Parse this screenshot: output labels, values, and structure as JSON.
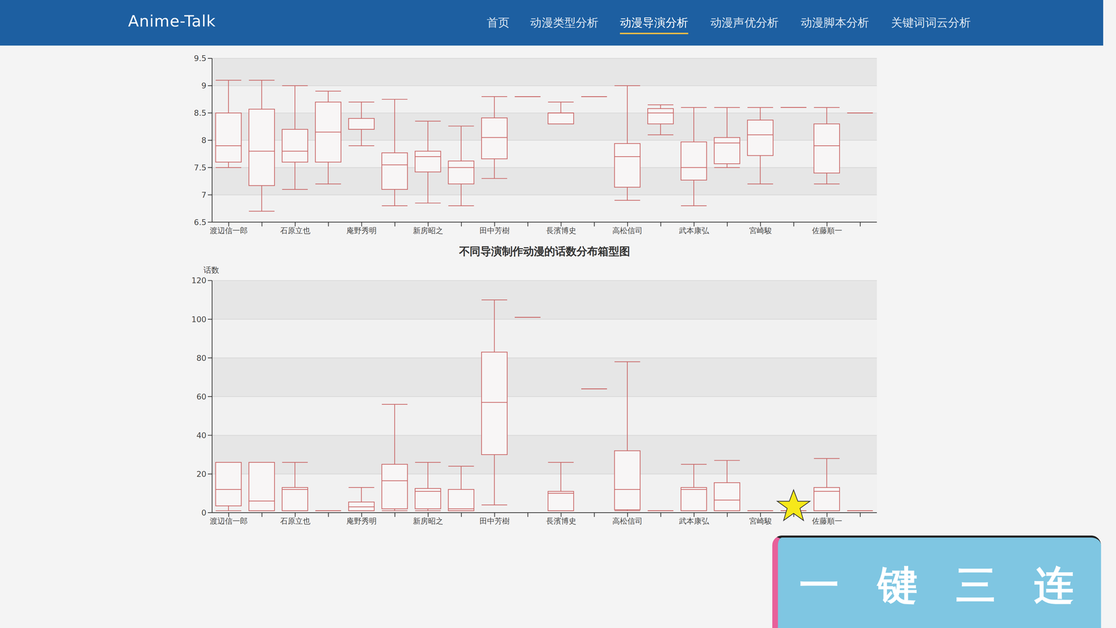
{
  "page": {
    "brand": "Anime-Talk",
    "nav": [
      "首页",
      "动漫类型分析",
      "动漫导演分析",
      "动漫声优分析",
      "动漫脚本分析",
      "关键词词云分析"
    ],
    "active_nav": "动漫导演分析",
    "overlay_text": "一键三连"
  },
  "chart_data": [
    {
      "type": "boxplot",
      "categories": [
        "渡辺信一郎",
        null,
        "石原立也",
        null,
        "庵野秀明",
        null,
        "新房昭之",
        null,
        "田中芳樹",
        null,
        "長濱博史",
        null,
        "高松信司",
        null,
        "武本康弘",
        null,
        "宮崎駿",
        null,
        "佐藤順一",
        null
      ],
      "values": [
        [
          7.5,
          7.6,
          7.9,
          8.5,
          9.1
        ],
        [
          6.7,
          7.17,
          7.8,
          8.57,
          9.1
        ],
        [
          7.1,
          7.6,
          7.8,
          8.2,
          9.0
        ],
        [
          7.2,
          7.6,
          8.15,
          8.7,
          8.9
        ],
        [
          7.9,
          8.2,
          8.2,
          8.4,
          8.7
        ],
        [
          6.8,
          7.1,
          7.55,
          7.77,
          8.75
        ],
        [
          6.85,
          7.42,
          7.7,
          7.8,
          8.35
        ],
        [
          6.8,
          7.2,
          7.5,
          7.62,
          8.26
        ],
        [
          7.3,
          7.66,
          8.05,
          8.41,
          8.8
        ],
        [
          8.8,
          8.8,
          8.8,
          8.8,
          8.8
        ],
        [
          8.3,
          8.3,
          8.5,
          8.5,
          8.7
        ],
        [
          8.8,
          8.8,
          8.8,
          8.8,
          8.8
        ],
        [
          6.9,
          7.14,
          7.7,
          7.94,
          9.0
        ],
        [
          8.1,
          8.3,
          8.5,
          8.58,
          8.65
        ],
        [
          6.8,
          7.27,
          7.5,
          7.97,
          8.6
        ],
        [
          7.5,
          7.57,
          7.95,
          8.05,
          8.6
        ],
        [
          7.2,
          7.72,
          8.1,
          8.37,
          8.6
        ],
        [
          8.6,
          8.6,
          8.6,
          8.6,
          8.6
        ],
        [
          7.2,
          7.4,
          7.9,
          8.3,
          8.6
        ],
        [
          8.5,
          8.5,
          8.5,
          8.5,
          8.5
        ]
      ],
      "color": "#c86464",
      "ylim": [
        6.5,
        9.5
      ],
      "yticks": [
        6.5,
        7,
        7.5,
        8,
        8.5,
        9,
        9.5
      ],
      "grid": true
    },
    {
      "type": "boxplot",
      "title": "不同导演制作动漫的话数分布箱型图",
      "y_label": "话数",
      "categories": [
        "渡辺信一郎",
        null,
        "石原立也",
        null,
        "庵野秀明",
        null,
        "新房昭之",
        null,
        "田中芳樹",
        null,
        "長濱博史",
        null,
        "高松信司",
        null,
        "武本康弘",
        null,
        "宮崎駿",
        null,
        "佐藤順一",
        null
      ],
      "values": [
        [
          1,
          3.5,
          12,
          26,
          26
        ],
        [
          1,
          1,
          6,
          26,
          26
        ],
        [
          1,
          1,
          12,
          13,
          26
        ],
        [
          1,
          1,
          1,
          1,
          1
        ],
        [
          1,
          1,
          3,
          5.5,
          13
        ],
        [
          1,
          2,
          16.5,
          25,
          56
        ],
        [
          1,
          2,
          11,
          12.5,
          26
        ],
        [
          1,
          1,
          2,
          12,
          24
        ],
        [
          4,
          30,
          57,
          83,
          110
        ],
        [
          101,
          101,
          101,
          101,
          101
        ],
        [
          1,
          1,
          10,
          11,
          26
        ],
        [
          64,
          64,
          64,
          64,
          64
        ],
        [
          1,
          1.5,
          12,
          32,
          78
        ],
        [
          1,
          1,
          1,
          1,
          1
        ],
        [
          1,
          1,
          12,
          13,
          25
        ],
        [
          1,
          1,
          6.5,
          15.5,
          27
        ],
        [
          1,
          1,
          1,
          1,
          1
        ],
        [
          1,
          1,
          1,
          1,
          1
        ],
        [
          1,
          1,
          11,
          13,
          28
        ],
        [
          1,
          1,
          1,
          1,
          1
        ]
      ],
      "color": "#c86464",
      "ylim": [
        0,
        120
      ],
      "yticks": [
        0,
        20,
        40,
        60,
        80,
        100,
        120
      ],
      "grid": true
    }
  ]
}
